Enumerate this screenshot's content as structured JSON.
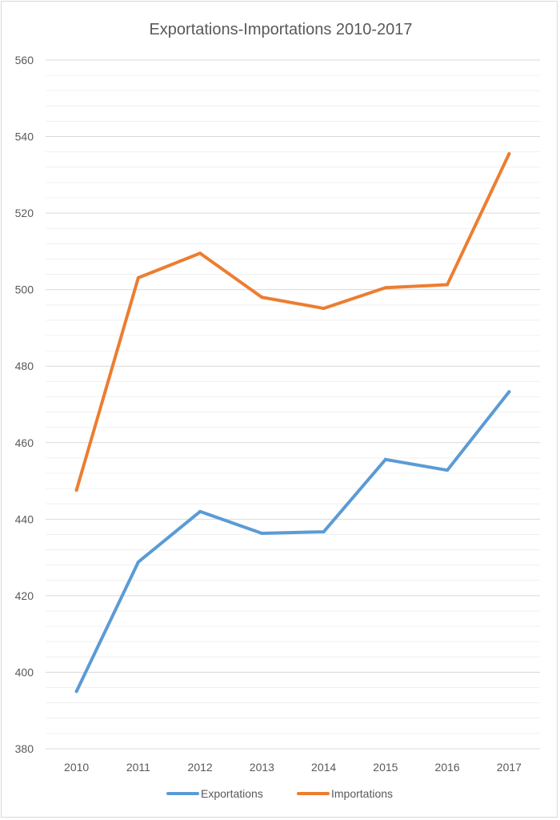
{
  "chart_data": {
    "type": "line",
    "title": "Exportations-Importations 2010-2017",
    "categories": [
      "2010",
      "2011",
      "2012",
      "2013",
      "2014",
      "2015",
      "2016",
      "2017"
    ],
    "series": [
      {
        "name": "Exportations",
        "color": "#5b9bd5",
        "values": [
          395,
          428.8,
          442,
          436.3,
          436.7,
          455.6,
          452.8,
          473.3
        ]
      },
      {
        "name": "Importations",
        "color": "#ed7d31",
        "values": [
          447.6,
          503.1,
          509.5,
          498,
          495.1,
          500.5,
          501.3,
          535.5
        ]
      }
    ],
    "ylim": [
      380,
      560
    ],
    "yticks": [
      "380",
      "400",
      "420",
      "440",
      "460",
      "480",
      "500",
      "520",
      "540",
      "560"
    ],
    "major_step": 20,
    "minor_step": 4,
    "grid": true,
    "legend_position": "bottom"
  }
}
